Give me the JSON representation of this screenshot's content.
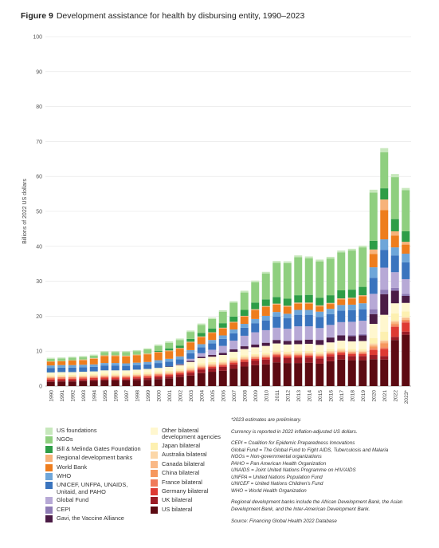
{
  "figure": {
    "label": "Figure 9",
    "title": "Development assistance for health by disbursing entity, 1990–2023"
  },
  "notes": {
    "preliminary": "*2023 estimates are preliminary.",
    "currency": "Currency is reported in 2022 inflation-adjusted US dollars.",
    "abbreviations": [
      "CEPI = Coalition for Epidemic Preparedness Innovations",
      "Global Fund = The Global Fund to Fight AIDS, Tuberculosis and Malaria",
      "NGOs = Non-governmental organizations",
      "PAHO = Pan American Health Organization",
      "UNAIDS = Joint United Nations Programme on HIV/AIDS",
      "UNFPA = United Nations Population Fund",
      "UNICEF = United Nations Children's Fund",
      "WHO = World Health Organization"
    ],
    "regional": "Regional development banks include the African Development Bank, the Asian Development Bank, and the Inter-American Development Bank.",
    "source": "Source: Financing Global Health 2022 Database"
  },
  "chart_data": {
    "type": "bar",
    "stacked": true,
    "ylabel": "Billions of 2022 US dollars",
    "ylim": [
      0,
      100
    ],
    "yticks": [
      0,
      10,
      20,
      30,
      40,
      50,
      60,
      70,
      80,
      90,
      100
    ],
    "grid": true,
    "categories": [
      "1990",
      "1991",
      "1992",
      "1993",
      "1994",
      "1995",
      "1996",
      "1997",
      "1998",
      "1999",
      "2000",
      "2001",
      "2002",
      "2003",
      "2004",
      "2005",
      "2006",
      "2007",
      "2008",
      "2009",
      "2010",
      "2011",
      "2012",
      "2013",
      "2014",
      "2015",
      "2016",
      "2017",
      "2018",
      "2019",
      "2020",
      "2021",
      "2022",
      "2023*"
    ],
    "series": [
      {
        "name": "US bilateral",
        "color": "#5c0a12",
        "values": [
          1.2,
          1.3,
          1.3,
          1.4,
          1.5,
          1.6,
          1.6,
          1.6,
          1.7,
          1.8,
          2.0,
          2.2,
          2.6,
          3.0,
          3.7,
          4.1,
          4.4,
          5.0,
          5.6,
          6.0,
          6.2,
          6.8,
          6.6,
          6.6,
          6.7,
          6.4,
          7.1,
          7.6,
          7.4,
          7.4,
          7.7,
          7.6,
          13.2,
          14.7
        ]
      },
      {
        "name": "UK bilateral",
        "color": "#9b1b25",
        "values": [
          0.4,
          0.4,
          0.4,
          0.4,
          0.4,
          0.4,
          0.4,
          0.4,
          0.5,
          0.5,
          0.6,
          0.6,
          0.7,
          0.8,
          1.0,
          1.0,
          1.1,
          1.2,
          1.3,
          1.3,
          1.4,
          1.5,
          1.4,
          1.5,
          1.5,
          1.5,
          1.4,
          1.3,
          1.2,
          1.2,
          1.2,
          1.0,
          0.9,
          0.9
        ]
      },
      {
        "name": "Germany bilateral",
        "color": "#de3a33",
        "values": [
          0.4,
          0.4,
          0.4,
          0.4,
          0.4,
          0.4,
          0.4,
          0.4,
          0.4,
          0.4,
          0.4,
          0.4,
          0.4,
          0.4,
          0.4,
          0.4,
          0.4,
          0.5,
          0.5,
          0.5,
          0.5,
          0.5,
          0.5,
          0.5,
          0.5,
          0.5,
          0.6,
          0.6,
          0.6,
          0.6,
          1.4,
          2.0,
          2.8,
          2.6
        ]
      },
      {
        "name": "France bilateral",
        "color": "#f07a5a",
        "values": [
          0.3,
          0.3,
          0.3,
          0.3,
          0.3,
          0.3,
          0.3,
          0.3,
          0.3,
          0.3,
          0.3,
          0.3,
          0.3,
          0.3,
          0.3,
          0.3,
          0.3,
          0.3,
          0.3,
          0.3,
          0.3,
          0.3,
          0.3,
          0.3,
          0.3,
          0.3,
          0.3,
          0.3,
          0.3,
          0.3,
          0.5,
          0.5,
          0.5,
          0.5
        ]
      },
      {
        "name": "China bilateral",
        "color": "#f6975e",
        "values": [
          0.1,
          0.1,
          0.1,
          0.1,
          0.1,
          0.1,
          0.1,
          0.1,
          0.1,
          0.1,
          0.1,
          0.1,
          0.1,
          0.1,
          0.1,
          0.1,
          0.1,
          0.1,
          0.1,
          0.1,
          0.1,
          0.1,
          0.1,
          0.1,
          0.1,
          0.1,
          0.1,
          0.1,
          0.1,
          0.1,
          0.5,
          1.2,
          0.5,
          0.3
        ]
      },
      {
        "name": "Canada bilateral",
        "color": "#f9b886",
        "values": [
          0.2,
          0.2,
          0.2,
          0.2,
          0.2,
          0.2,
          0.2,
          0.2,
          0.2,
          0.2,
          0.2,
          0.2,
          0.2,
          0.3,
          0.3,
          0.3,
          0.3,
          0.3,
          0.3,
          0.3,
          0.3,
          0.3,
          0.3,
          0.3,
          0.3,
          0.3,
          0.3,
          0.3,
          0.3,
          0.3,
          0.5,
          0.5,
          0.5,
          0.4
        ]
      },
      {
        "name": "Australia bilateral",
        "color": "#fcd7a8",
        "values": [
          0.2,
          0.2,
          0.2,
          0.2,
          0.2,
          0.2,
          0.2,
          0.2,
          0.2,
          0.2,
          0.2,
          0.2,
          0.2,
          0.3,
          0.3,
          0.3,
          0.3,
          0.3,
          0.3,
          0.3,
          0.3,
          0.3,
          0.3,
          0.3,
          0.3,
          0.3,
          0.3,
          0.3,
          0.3,
          0.3,
          0.4,
          0.4,
          0.4,
          0.4
        ]
      },
      {
        "name": "Japan bilateral",
        "color": "#fdf0b0",
        "values": [
          0.3,
          0.3,
          0.3,
          0.3,
          0.3,
          0.4,
          0.4,
          0.4,
          0.4,
          0.4,
          0.4,
          0.4,
          0.4,
          0.4,
          0.4,
          0.4,
          0.4,
          0.4,
          0.4,
          0.4,
          0.4,
          0.4,
          0.4,
          0.4,
          0.4,
          0.4,
          0.4,
          0.4,
          0.4,
          0.4,
          1.5,
          2.4,
          2.0,
          1.6
        ]
      },
      {
        "name": "Other bilateral development agencies",
        "color": "#fff7cf",
        "values": [
          0.8,
          0.8,
          0.8,
          0.8,
          0.8,
          0.9,
          0.9,
          0.9,
          0.9,
          1.0,
          1.0,
          1.1,
          1.1,
          1.3,
          1.5,
          1.5,
          1.6,
          1.7,
          1.8,
          1.9,
          2.0,
          2.0,
          2.0,
          2.0,
          2.0,
          2.0,
          2.0,
          2.1,
          2.2,
          2.3,
          4.1,
          4.8,
          2.9,
          2.4
        ]
      },
      {
        "name": "Gavi, the Vaccine Alliance",
        "color": "#4a1b45",
        "values": [
          0,
          0,
          0,
          0,
          0,
          0,
          0,
          0,
          0,
          0,
          0,
          0.1,
          0.2,
          0.3,
          0.4,
          0.5,
          0.6,
          0.7,
          0.8,
          0.8,
          0.9,
          1.0,
          1.0,
          1.1,
          1.2,
          1.4,
          1.4,
          1.5,
          1.5,
          1.6,
          2.8,
          5.9,
          3.6,
          2.0
        ]
      },
      {
        "name": "CEPI",
        "color": "#8e7bb5",
        "values": [
          0,
          0,
          0,
          0,
          0,
          0,
          0,
          0,
          0,
          0,
          0,
          0,
          0,
          0,
          0,
          0,
          0,
          0,
          0,
          0,
          0,
          0,
          0,
          0,
          0,
          0,
          0,
          0,
          0.3,
          0.4,
          1.4,
          1.3,
          0.8,
          0.6
        ]
      },
      {
        "name": "Global Fund",
        "color": "#b7a9d6",
        "values": [
          0,
          0,
          0,
          0,
          0,
          0,
          0,
          0,
          0,
          0,
          0,
          0,
          0.1,
          0.6,
          1.0,
          1.5,
          2.0,
          2.5,
          3.0,
          3.5,
          3.6,
          3.5,
          3.5,
          4.0,
          3.8,
          3.4,
          3.6,
          3.8,
          3.8,
          3.8,
          4.4,
          6.3,
          4.5,
          4.2
        ]
      },
      {
        "name": "UNICEF, UNFPA, UNAIDS, Unitaid, and PAHO",
        "color": "#3a74be",
        "values": [
          1.3,
          1.3,
          1.3,
          1.3,
          1.3,
          1.4,
          1.4,
          1.3,
          1.3,
          1.3,
          1.4,
          1.4,
          1.4,
          1.6,
          1.7,
          1.8,
          2.0,
          2.1,
          2.3,
          2.6,
          2.8,
          3.2,
          3.0,
          3.3,
          3.3,
          3.2,
          3.1,
          3.3,
          3.3,
          3.3,
          4.6,
          5.1,
          4.8,
          4.8
        ]
      },
      {
        "name": "WHO",
        "color": "#6ea6d9",
        "values": [
          0.7,
          0.7,
          0.7,
          0.7,
          0.7,
          0.7,
          0.7,
          0.7,
          0.7,
          0.7,
          0.8,
          0.8,
          0.8,
          0.9,
          0.9,
          1.0,
          1.0,
          1.1,
          1.1,
          1.2,
          1.3,
          1.3,
          1.3,
          1.4,
          1.4,
          1.5,
          1.5,
          1.6,
          1.6,
          1.7,
          3.0,
          3.0,
          2.3,
          2.5
        ]
      },
      {
        "name": "World Bank",
        "color": "#ee7d1d",
        "values": [
          1.1,
          1.1,
          1.3,
          1.3,
          1.6,
          2.0,
          2.0,
          2.0,
          2.1,
          2.2,
          2.2,
          2.2,
          2.2,
          2.2,
          2.0,
          2.0,
          2.0,
          2.0,
          2.1,
          2.5,
          2.5,
          2.1,
          2.0,
          1.8,
          1.8,
          1.5,
          1.4,
          1.6,
          1.7,
          2.0,
          3.8,
          8.4,
          3.4,
          2.6
        ]
      },
      {
        "name": "Regional development banks",
        "color": "#f7b27a",
        "values": [
          0.1,
          0.1,
          0.1,
          0.2,
          0.2,
          0.2,
          0.2,
          0.2,
          0.2,
          0.2,
          0.2,
          0.2,
          0.2,
          0.2,
          0.2,
          0.2,
          0.2,
          0.2,
          0.2,
          0.3,
          0.3,
          0.3,
          0.3,
          0.3,
          0.3,
          0.3,
          0.3,
          0.3,
          0.3,
          0.3,
          1.3,
          3.0,
          1.2,
          0.8
        ]
      },
      {
        "name": "Bill & Melinda Gates Foundation",
        "color": "#2e9d47",
        "values": [
          0,
          0,
          0,
          0,
          0,
          0,
          0,
          0,
          0,
          0,
          0.3,
          0.6,
          0.7,
          0.8,
          1.0,
          1.1,
          1.3,
          1.5,
          1.7,
          1.9,
          1.9,
          1.9,
          2.0,
          2.1,
          2.2,
          2.2,
          2.2,
          2.3,
          2.3,
          2.4,
          2.5,
          3.2,
          3.5,
          3.0
        ]
      },
      {
        "name": "NGOs",
        "color": "#8fcf7f",
        "values": [
          0.7,
          0.7,
          0.7,
          0.7,
          0.7,
          0.9,
          0.9,
          1.0,
          1.0,
          1.2,
          1.4,
          1.6,
          1.6,
          2.0,
          2.3,
          2.7,
          3.3,
          4.0,
          5.0,
          5.8,
          7.4,
          9.8,
          10.2,
          10.9,
          10.5,
          10.4,
          10.5,
          10.9,
          11.2,
          11.3,
          13.8,
          10.3,
          12.0,
          11.8
        ]
      },
      {
        "name": "US foundations",
        "color": "#c7e8bc",
        "values": [
          0.3,
          0.3,
          0.3,
          0.3,
          0.3,
          0.3,
          0.3,
          0.3,
          0.3,
          0.3,
          0.4,
          0.4,
          0.4,
          0.4,
          0.4,
          0.4,
          0.4,
          0.4,
          0.5,
          0.5,
          0.5,
          0.5,
          0.5,
          0.5,
          0.5,
          0.5,
          0.5,
          0.5,
          0.5,
          0.5,
          0.8,
          1.2,
          0.9,
          0.6
        ]
      }
    ]
  },
  "legend_columns": [
    [
      "US foundations",
      "NGOs",
      "Bill & Melinda Gates Foundation",
      "Regional development banks",
      "World Bank",
      "WHO",
      "UNICEF, UNFPA, UNAIDS, Unitaid, and PAHO",
      "Global Fund",
      "CEPI",
      "Gavi, the Vaccine Alliance"
    ],
    [
      "Other bilateral development agencies",
      "Japan bilateral",
      "Australia bilateral",
      "Canada bilateral",
      "China bilateral",
      "France bilateral",
      "Germany bilateral",
      "UK bilateral",
      "US bilateral"
    ]
  ]
}
